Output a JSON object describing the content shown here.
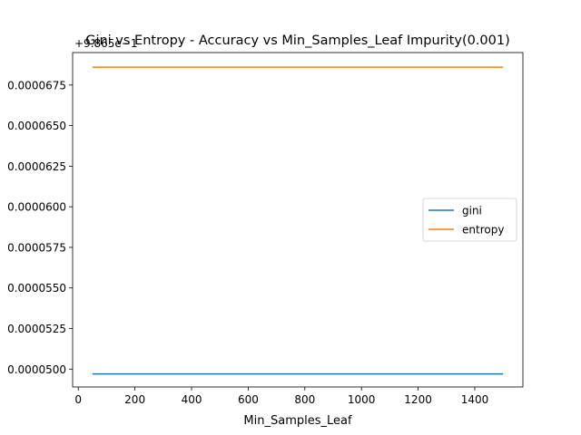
{
  "chart_data": {
    "type": "line",
    "title": "Gini vs Entropy - Accuracy vs Min_Samples_Leaf Impurity(0.001)",
    "xlabel": "Min_Samples_Leaf",
    "ylabel": "",
    "y_offset_text": "+9.865e−1",
    "xlim": [
      -20,
      1570
    ],
    "ylim": [
      4.89e-05,
      6.95e-05
    ],
    "x_ticks": [
      0,
      200,
      400,
      600,
      800,
      1000,
      1200,
      1400
    ],
    "x_tick_labels": [
      "0",
      "200",
      "400",
      "600",
      "800",
      "1000",
      "1200",
      "1400"
    ],
    "y_ticks": [
      5e-05,
      5.25e-05,
      5.5e-05,
      5.75e-05,
      6e-05,
      6.25e-05,
      6.5e-05,
      6.75e-05
    ],
    "y_tick_labels": [
      "0.0000500",
      "0.0000525",
      "0.0000550",
      "0.0000575",
      "0.0000600",
      "0.0000625",
      "0.0000650",
      "0.0000675"
    ],
    "grid": false,
    "legend_position": "center-right",
    "series": [
      {
        "name": "gini",
        "color": "#1f77b4",
        "x": [
          50,
          1500
        ],
        "y": [
          4.97e-05,
          4.97e-05
        ]
      },
      {
        "name": "entropy",
        "color": "#ff7f0e",
        "x": [
          50,
          1500
        ],
        "y": [
          6.86e-05,
          6.86e-05
        ]
      }
    ]
  }
}
